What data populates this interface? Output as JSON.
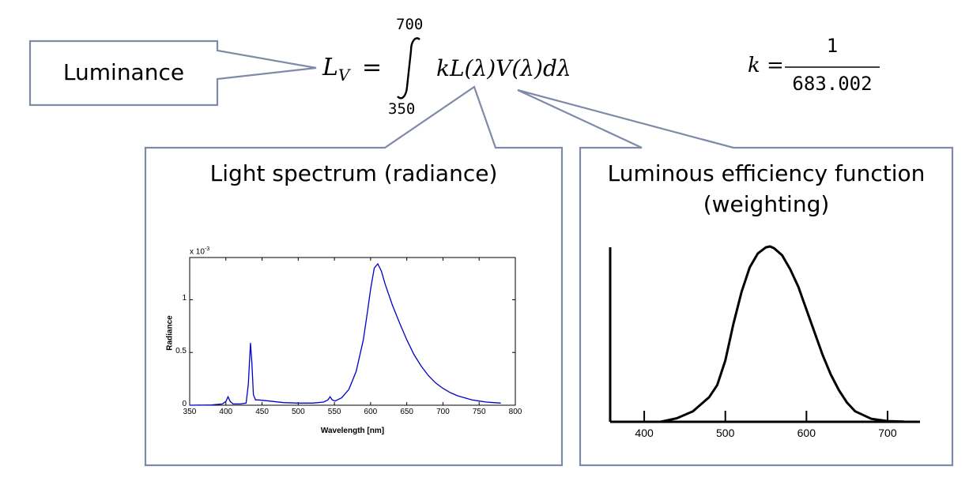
{
  "luminance_box": {
    "label": "Luminance"
  },
  "equation": {
    "lhs": "L",
    "lhs_sub": "V",
    "equals": "=",
    "upper_limit": "700",
    "lower_limit": "350",
    "integrand": "kL(λ)V(λ)dλ"
  },
  "k_def": {
    "lhs": "k =",
    "numerator": "1",
    "denominator": "683.002"
  },
  "spectrum_box": {
    "title": "Light spectrum (radiance)",
    "chart_data": {
      "type": "line",
      "xlabel": "Wavelength [nm]",
      "ylabel": "Radiance",
      "exponent_label": "x 10",
      "exponent_power": "-3",
      "xlim": [
        350,
        800
      ],
      "ylim": [
        0,
        1.4
      ],
      "x_ticks": [
        "350",
        "400",
        "450",
        "500",
        "550",
        "600",
        "650",
        "700",
        "750",
        "800"
      ],
      "y_ticks": [
        "0",
        "0.5",
        "1"
      ],
      "color": "#0000cc",
      "series": [
        {
          "x": [
            350,
            380,
            395,
            400,
            403,
            406,
            410,
            420,
            428,
            431,
            434,
            436,
            438,
            441,
            445,
            460,
            480,
            500,
            520,
            535,
            541,
            544,
            547,
            551,
            560,
            570,
            580,
            590,
            596,
            600,
            605,
            610,
            615,
            620,
            630,
            640,
            650,
            660,
            670,
            680,
            690,
            700,
            710,
            720,
            730,
            740,
            750,
            760,
            770,
            780
          ],
          "y": [
            0.0,
            0.002,
            0.012,
            0.035,
            0.08,
            0.035,
            0.012,
            0.012,
            0.02,
            0.2,
            0.59,
            0.4,
            0.1,
            0.05,
            0.05,
            0.04,
            0.025,
            0.02,
            0.02,
            0.03,
            0.05,
            0.08,
            0.05,
            0.04,
            0.07,
            0.15,
            0.32,
            0.62,
            0.9,
            1.1,
            1.3,
            1.34,
            1.27,
            1.15,
            0.95,
            0.78,
            0.62,
            0.48,
            0.37,
            0.28,
            0.21,
            0.16,
            0.12,
            0.09,
            0.07,
            0.05,
            0.04,
            0.03,
            0.025,
            0.02
          ]
        }
      ]
    }
  },
  "efficiency_box": {
    "title_line1": "Luminous efficiency function",
    "title_line2": "(weighting)",
    "chart_data": {
      "type": "line",
      "xlim": [
        358,
        740
      ],
      "ylim": [
        0,
        1
      ],
      "x_ticks": [
        "400",
        "500",
        "600",
        "700"
      ],
      "series": [
        {
          "x": [
            380,
            400,
            420,
            440,
            460,
            480,
            490,
            500,
            510,
            520,
            530,
            540,
            550,
            555,
            560,
            570,
            580,
            590,
            600,
            610,
            620,
            630,
            640,
            650,
            660,
            680,
            700,
            720,
            740
          ],
          "y": [
            0.0,
            0.0,
            0.0,
            0.02,
            0.06,
            0.14,
            0.21,
            0.35,
            0.56,
            0.74,
            0.88,
            0.96,
            0.995,
            1.0,
            0.99,
            0.95,
            0.87,
            0.77,
            0.64,
            0.51,
            0.38,
            0.27,
            0.18,
            0.11,
            0.06,
            0.017,
            0.004,
            0.001,
            0.0
          ]
        }
      ]
    }
  }
}
